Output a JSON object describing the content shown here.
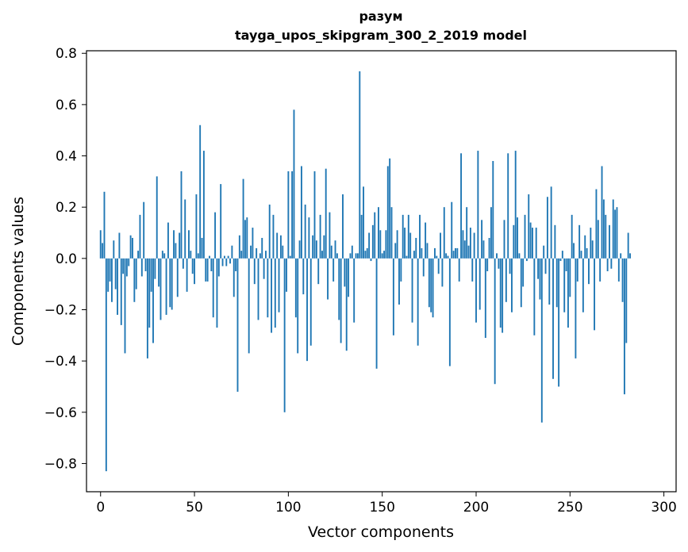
{
  "chart_data": {
    "type": "bar",
    "title": "разум",
    "subtitle": "tayga_upos_skipgram_300_2_2019 model",
    "xlabel": "Vector components",
    "ylabel": "Components values",
    "xlim": [
      -7.5,
      306.5
    ],
    "ylim": [
      -0.91,
      0.81
    ],
    "xticks": [
      0,
      50,
      100,
      150,
      200,
      250,
      300
    ],
    "xtick_labels": [
      "0",
      "50",
      "100",
      "150",
      "200",
      "250",
      "300"
    ],
    "yticks": [
      -0.8,
      -0.6,
      -0.4,
      -0.2,
      0.0,
      0.2,
      0.4,
      0.6,
      0.8
    ],
    "ytick_labels": [
      "−0.8",
      "−0.6",
      "−0.4",
      "−0.2",
      "0.0",
      "0.2",
      "0.4",
      "0.6",
      "0.8"
    ],
    "bar_color": "#1f77b4",
    "grid": false,
    "legend": null,
    "values": [
      0.11,
      0.06,
      0.26,
      -0.83,
      -0.13,
      -0.09,
      -0.17,
      0.07,
      -0.12,
      -0.22,
      0.1,
      -0.26,
      -0.06,
      -0.37,
      -0.07,
      -0.03,
      0.09,
      0.08,
      -0.17,
      -0.12,
      0.03,
      0.17,
      -0.07,
      0.22,
      -0.05,
      -0.39,
      -0.27,
      -0.13,
      -0.33,
      -0.08,
      0.32,
      -0.11,
      -0.24,
      0.03,
      0.02,
      -0.22,
      0.14,
      -0.19,
      -0.2,
      0.11,
      0.06,
      -0.15,
      0.1,
      0.34,
      -0.04,
      0.23,
      -0.13,
      0.11,
      0.03,
      -0.06,
      -0.1,
      0.25,
      0.02,
      0.52,
      0.08,
      0.42,
      -0.09,
      -0.09,
      0.01,
      -0.05,
      -0.23,
      0.18,
      -0.27,
      -0.07,
      0.29,
      -0.03,
      0.01,
      -0.03,
      0.01,
      -0.02,
      0.05,
      -0.15,
      -0.05,
      -0.52,
      0.09,
      0.03,
      0.31,
      0.15,
      0.16,
      -0.37,
      0.05,
      0.12,
      -0.1,
      0.04,
      -0.24,
      0.02,
      0.08,
      -0.08,
      0.03,
      -0.23,
      0.21,
      -0.29,
      0.17,
      -0.27,
      0.1,
      -0.21,
      0.09,
      0.05,
      -0.6,
      -0.13,
      0.34,
      0.01,
      0.34,
      0.58,
      -0.23,
      -0.37,
      0.07,
      0.36,
      -0.14,
      0.21,
      -0.4,
      0.16,
      -0.34,
      0.09,
      0.34,
      0.07,
      -0.1,
      0.17,
      0.03,
      0.09,
      0.35,
      -0.16,
      0.18,
      0.05,
      -0.09,
      0.07,
      0.02,
      -0.24,
      -0.33,
      0.25,
      -0.11,
      -0.36,
      -0.15,
      0.02,
      0.05,
      -0.25,
      0.02,
      0.02,
      0.73,
      0.17,
      0.28,
      0.03,
      0.04,
      0.1,
      -0.01,
      0.13,
      0.18,
      -0.43,
      0.2,
      0.11,
      0.02,
      0.03,
      0.11,
      0.36,
      0.39,
      0.2,
      -0.3,
      0.06,
      0.11,
      -0.18,
      -0.09,
      0.17,
      0.12,
      0.01,
      0.17,
      0.1,
      -0.25,
      0.03,
      0.08,
      -0.34,
      0.17,
      0.04,
      -0.07,
      0.14,
      0.06,
      -0.19,
      -0.21,
      -0.23,
      0.04,
      0.01,
      -0.06,
      0.1,
      -0.11,
      0.2,
      0.02,
      0.01,
      -0.42,
      0.22,
      0.03,
      0.04,
      0.04,
      -0.09,
      0.41,
      0.11,
      0.07,
      0.2,
      0.05,
      0.12,
      -0.09,
      0.1,
      -0.25,
      0.42,
      -0.2,
      0.15,
      0.07,
      -0.31,
      -0.05,
      0.08,
      0.2,
      0.38,
      -0.49,
      0.02,
      -0.04,
      -0.27,
      -0.29,
      0.15,
      -0.17,
      0.41,
      -0.06,
      -0.21,
      0.13,
      0.42,
      0.16,
      0.02,
      -0.19,
      -0.11,
      0.17,
      -0.01,
      0.25,
      0.14,
      0.12,
      -0.3,
      0.12,
      -0.08,
      -0.16,
      -0.64,
      0.05,
      -0.06,
      0.24,
      -0.18,
      0.28,
      -0.47,
      0.13,
      -0.19,
      -0.5,
      -0.01,
      0.03,
      -0.21,
      -0.05,
      -0.27,
      -0.15,
      0.17,
      0.06,
      -0.39,
      -0.09,
      0.13,
      0.03,
      -0.21,
      0.09,
      0.04,
      -0.1,
      0.12,
      0.07,
      -0.28,
      0.27,
      0.15,
      -0.09,
      0.36,
      0.23,
      0.17,
      -0.05,
      0.13,
      -0.04,
      0.23,
      0.19,
      0.2,
      -0.09,
      0.02,
      -0.17,
      -0.53,
      -0.33,
      0.1,
      0.02
    ]
  }
}
